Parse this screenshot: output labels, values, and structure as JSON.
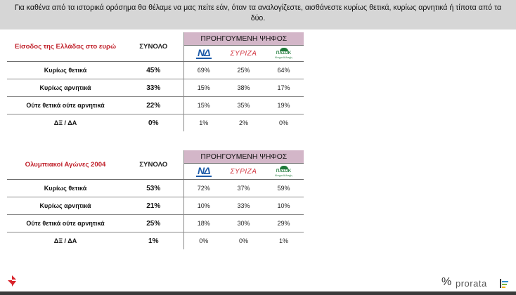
{
  "question": "Για καθένα από τα ιστορικά ορόσημα θα θέλαμε να μας πείτε εάν, όταν τα αναλογίζεστε, αισθάνεστε κυρίως θετικά, κυρίως αρνητικά ή τίποτα από τα δύο.",
  "total_label": "ΣΥΝΟΛΟ",
  "previous_vote_label": "ΠΡΟΗΓΟΥΜΕΝΗ ΨΗΦΟΣ",
  "parties": {
    "nd": {
      "text": "ΝΔ",
      "icon": "nd-logo-icon",
      "color": "#1c5aa8"
    },
    "syriza": {
      "text": "ΣΥΡΙΖΑ",
      "icon": "syriza-logo-icon",
      "color": "#d23540"
    },
    "pasok": {
      "text": "ΠΑΣΟΚ",
      "sub": "Κίνημα Αλλαγής",
      "icon": "pasok-logo-icon",
      "color": "#1f7a3a"
    }
  },
  "header_color": "#d3b6c8",
  "topic_color": "#c0202a",
  "tables": [
    {
      "topic": "Είσοδος της Ελλάδας στο ευρώ",
      "rows": [
        {
          "label": "Κυρίως θετικά",
          "total": "45%",
          "nd": "69%",
          "syriza": "25%",
          "pasok": "64%"
        },
        {
          "label": "Κυρίως αρνητικά",
          "total": "33%",
          "nd": "15%",
          "syriza": "38%",
          "pasok": "17%"
        },
        {
          "label": "Ούτε θετικά ούτε αρνητικά",
          "total": "22%",
          "nd": "15%",
          "syriza": "35%",
          "pasok": "19%"
        },
        {
          "label": "ΔΞ / ΔΑ",
          "total": "0%",
          "nd": "1%",
          "syriza": "2%",
          "pasok": "0%"
        }
      ]
    },
    {
      "topic": "Ολυμπιακοί Αγώνες 2004",
      "rows": [
        {
          "label": "Κυρίως θετικά",
          "total": "53%",
          "nd": "72%",
          "syriza": "37%",
          "pasok": "59%"
        },
        {
          "label": "Κυρίως αρνητικά",
          "total": "21%",
          "nd": "10%",
          "syriza": "33%",
          "pasok": "10%"
        },
        {
          "label": "Ούτε θετικά ούτε αρνητικά",
          "total": "25%",
          "nd": "18%",
          "syriza": "30%",
          "pasok": "29%"
        },
        {
          "label": "ΔΞ / ΔΑ",
          "total": "1%",
          "nd": "0%",
          "syriza": "0%",
          "pasok": "1%"
        }
      ]
    }
  ],
  "footer": {
    "left_icon": "tatsiz-logo-icon",
    "percent_symbol": "%",
    "brand": "prorata",
    "brand_icon": "prorata-bars-icon"
  }
}
